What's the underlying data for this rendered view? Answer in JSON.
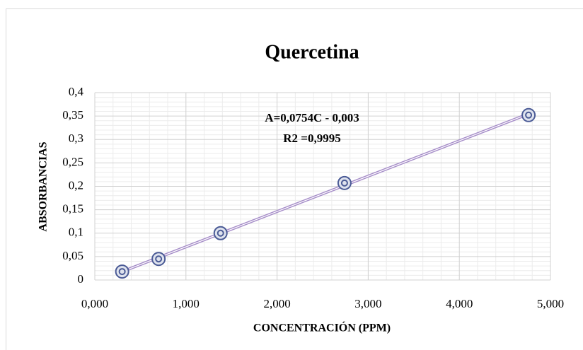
{
  "chart_data": {
    "type": "scatter",
    "title": "Quercetina",
    "xlabel": "CONCENTRACIÓN (PPM)",
    "ylabel": "ABSORBANCIAS",
    "annotations": [
      "A=0,0754C - 0,003",
      "R2 =0,9995"
    ],
    "series": [
      {
        "name": "Quercetina",
        "color": "#4b5b96",
        "trendline_color": "#a58cc8",
        "x": [
          0.3,
          0.7,
          1.38,
          2.74,
          4.76
        ],
        "values": [
          0.018,
          0.045,
          0.1,
          0.207,
          0.352
        ]
      }
    ],
    "xlim": [
      0,
      5
    ],
    "xticks": [
      {
        "value": 0,
        "label": "0,000"
      },
      {
        "value": 1,
        "label": "1,000"
      },
      {
        "value": 2,
        "label": "2,000"
      },
      {
        "value": 3,
        "label": "3,000"
      },
      {
        "value": 4,
        "label": "4,000"
      },
      {
        "value": 5,
        "label": "5,000"
      }
    ],
    "ylim": [
      0,
      0.4
    ],
    "yticks": [
      0,
      {
        "value": 0.05,
        "label": "0,05"
      },
      {
        "value": 0.1,
        "label": "0,1"
      },
      {
        "value": 0.15,
        "label": "0,15"
      },
      {
        "value": 0.2,
        "label": "0,2"
      },
      {
        "value": 0.25,
        "label": "0,25"
      },
      {
        "value": 0.3,
        "label": "0,3"
      },
      {
        "value": 0.35,
        "label": "0,35"
      },
      {
        "value": 0.4,
        "label": "0,4"
      }
    ],
    "grid": true,
    "minor_grid": true
  }
}
